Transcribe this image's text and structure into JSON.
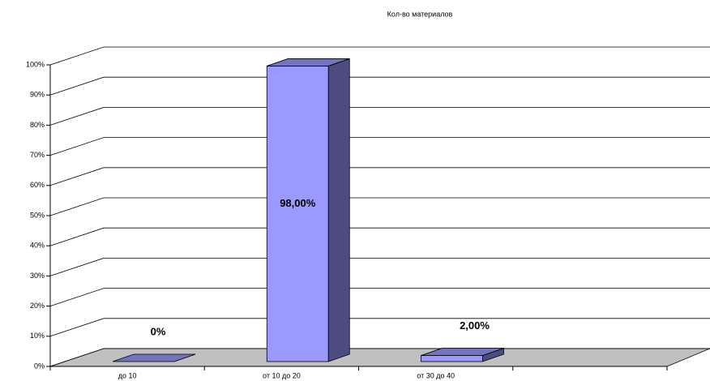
{
  "chart_data": {
    "type": "bar3d",
    "title": "Кол-во материалов",
    "categories": [
      "до 10",
      "от 10 до 20",
      "от 30 до 40",
      null
    ],
    "values": [
      0,
      98,
      2,
      null
    ],
    "value_labels": [
      "0%",
      "98,00%",
      "2,00%",
      null
    ],
    "color": "#9999ff",
    "ylim": [
      0,
      100
    ],
    "yticks": [
      {
        "value": 0,
        "label": "0%"
      },
      {
        "value": 10,
        "label": "10%"
      },
      {
        "value": 20,
        "label": "20%"
      },
      {
        "value": 30,
        "label": "30%"
      },
      {
        "value": 40,
        "label": "40%"
      },
      {
        "value": 50,
        "label": "50%"
      },
      {
        "value": 60,
        "label": "60%"
      },
      {
        "value": 70,
        "label": "70%"
      },
      {
        "value": 80,
        "label": "80%"
      },
      {
        "value": 90,
        "label": "90%"
      },
      {
        "value": 100,
        "label": "100%"
      }
    ],
    "grid": true
  }
}
